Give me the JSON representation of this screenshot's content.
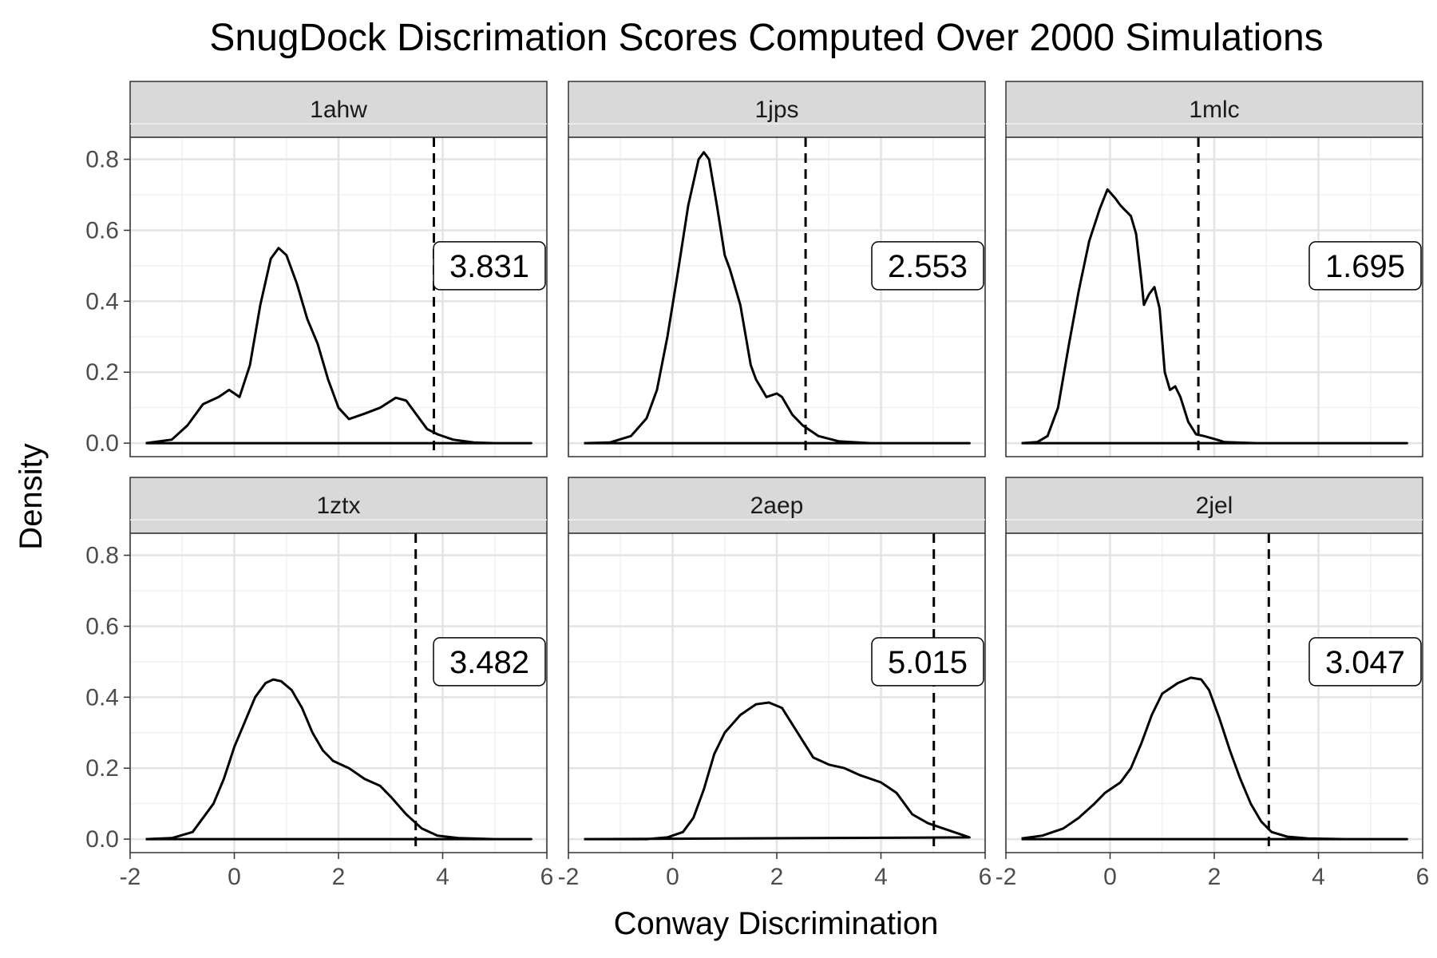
{
  "chart_data": {
    "type": "density-facets",
    "title": "SnugDock Discrimation Scores Computed Over 2000 Simulations",
    "xlabel": "Conway Discrimination",
    "ylabel": "Density",
    "xlim": [
      -2,
      6
    ],
    "ylim": [
      0,
      0.8
    ],
    "x_ticks": [
      "-2",
      "0",
      "2",
      "4",
      "6"
    ],
    "y_ticks": [
      "0.0",
      "0.2",
      "0.4",
      "0.6",
      "0.8"
    ],
    "grid": true,
    "layout": "2 rows x 3 columns",
    "panels": [
      {
        "label": "1ahw",
        "threshold": 3.831,
        "threshold_label": "3.831",
        "curve": [
          [
            -1.7,
            0.0
          ],
          [
            -1.2,
            0.01
          ],
          [
            -0.9,
            0.05
          ],
          [
            -0.6,
            0.11
          ],
          [
            -0.3,
            0.13
          ],
          [
            -0.1,
            0.15
          ],
          [
            0.1,
            0.13
          ],
          [
            0.3,
            0.22
          ],
          [
            0.5,
            0.39
          ],
          [
            0.7,
            0.52
          ],
          [
            0.85,
            0.55
          ],
          [
            1.0,
            0.53
          ],
          [
            1.2,
            0.45
          ],
          [
            1.4,
            0.35
          ],
          [
            1.6,
            0.28
          ],
          [
            1.8,
            0.18
          ],
          [
            2.0,
            0.1
          ],
          [
            2.2,
            0.068
          ],
          [
            2.5,
            0.083
          ],
          [
            2.8,
            0.1
          ],
          [
            3.1,
            0.128
          ],
          [
            3.3,
            0.12
          ],
          [
            3.5,
            0.08
          ],
          [
            3.7,
            0.04
          ],
          [
            3.9,
            0.025
          ],
          [
            4.2,
            0.01
          ],
          [
            4.6,
            0.002
          ],
          [
            5.0,
            0.0
          ],
          [
            5.7,
            0.0
          ]
        ]
      },
      {
        "label": "1jps",
        "threshold": 2.553,
        "threshold_label": "2.553",
        "curve": [
          [
            -1.7,
            0.0
          ],
          [
            -1.2,
            0.002
          ],
          [
            -0.8,
            0.02
          ],
          [
            -0.5,
            0.07
          ],
          [
            -0.3,
            0.15
          ],
          [
            -0.1,
            0.3
          ],
          [
            0.1,
            0.48
          ],
          [
            0.3,
            0.67
          ],
          [
            0.5,
            0.8
          ],
          [
            0.6,
            0.82
          ],
          [
            0.7,
            0.8
          ],
          [
            0.85,
            0.67
          ],
          [
            1.0,
            0.53
          ],
          [
            1.1,
            0.49
          ],
          [
            1.3,
            0.39
          ],
          [
            1.5,
            0.22
          ],
          [
            1.6,
            0.18
          ],
          [
            1.8,
            0.13
          ],
          [
            2.0,
            0.14
          ],
          [
            2.1,
            0.13
          ],
          [
            2.3,
            0.08
          ],
          [
            2.5,
            0.05
          ],
          [
            2.8,
            0.02
          ],
          [
            3.2,
            0.005
          ],
          [
            3.8,
            0.0
          ],
          [
            5.7,
            0.0
          ]
        ]
      },
      {
        "label": "1mlc",
        "threshold": 1.695,
        "threshold_label": "1.695",
        "curve": [
          [
            -1.7,
            0.0
          ],
          [
            -1.4,
            0.003
          ],
          [
            -1.2,
            0.02
          ],
          [
            -1.0,
            0.1
          ],
          [
            -0.8,
            0.27
          ],
          [
            -0.6,
            0.43
          ],
          [
            -0.4,
            0.57
          ],
          [
            -0.2,
            0.66
          ],
          [
            -0.05,
            0.715
          ],
          [
            0.1,
            0.69
          ],
          [
            0.2,
            0.67
          ],
          [
            0.4,
            0.64
          ],
          [
            0.5,
            0.59
          ],
          [
            0.6,
            0.46
          ],
          [
            0.65,
            0.39
          ],
          [
            0.75,
            0.42
          ],
          [
            0.85,
            0.44
          ],
          [
            0.95,
            0.38
          ],
          [
            1.05,
            0.2
          ],
          [
            1.15,
            0.15
          ],
          [
            1.25,
            0.16
          ],
          [
            1.35,
            0.13
          ],
          [
            1.5,
            0.06
          ],
          [
            1.65,
            0.025
          ],
          [
            1.8,
            0.02
          ],
          [
            2.0,
            0.012
          ],
          [
            2.2,
            0.003
          ],
          [
            2.8,
            0.0
          ],
          [
            5.7,
            0.0
          ]
        ]
      },
      {
        "label": "1ztx",
        "threshold": 3.482,
        "threshold_label": "3.482",
        "curve": [
          [
            -1.7,
            0.0
          ],
          [
            -1.2,
            0.003
          ],
          [
            -0.8,
            0.02
          ],
          [
            -0.4,
            0.1
          ],
          [
            -0.2,
            0.17
          ],
          [
            0.0,
            0.26
          ],
          [
            0.2,
            0.33
          ],
          [
            0.4,
            0.4
          ],
          [
            0.6,
            0.44
          ],
          [
            0.75,
            0.45
          ],
          [
            0.9,
            0.445
          ],
          [
            1.1,
            0.42
          ],
          [
            1.3,
            0.37
          ],
          [
            1.5,
            0.3
          ],
          [
            1.7,
            0.25
          ],
          [
            1.9,
            0.22
          ],
          [
            2.2,
            0.2
          ],
          [
            2.5,
            0.17
          ],
          [
            2.8,
            0.15
          ],
          [
            3.0,
            0.12
          ],
          [
            3.3,
            0.07
          ],
          [
            3.6,
            0.03
          ],
          [
            3.9,
            0.01
          ],
          [
            4.3,
            0.003
          ],
          [
            5.0,
            0.0
          ],
          [
            5.7,
            0.0
          ]
        ]
      },
      {
        "label": "2aep",
        "threshold": 5.015,
        "threshold_label": "5.015",
        "curve": [
          [
            -1.7,
            0.0
          ],
          [
            -0.5,
            0.0
          ],
          [
            -0.1,
            0.005
          ],
          [
            0.2,
            0.02
          ],
          [
            0.4,
            0.06
          ],
          [
            0.6,
            0.14
          ],
          [
            0.8,
            0.24
          ],
          [
            1.0,
            0.3
          ],
          [
            1.3,
            0.35
          ],
          [
            1.6,
            0.38
          ],
          [
            1.85,
            0.385
          ],
          [
            2.1,
            0.37
          ],
          [
            2.4,
            0.3
          ],
          [
            2.7,
            0.23
          ],
          [
            3.0,
            0.21
          ],
          [
            3.3,
            0.2
          ],
          [
            3.6,
            0.18
          ],
          [
            4.0,
            0.16
          ],
          [
            4.3,
            0.13
          ],
          [
            4.6,
            0.07
          ],
          [
            4.9,
            0.045
          ],
          [
            5.2,
            0.03
          ],
          [
            5.5,
            0.015
          ],
          [
            5.7,
            0.005
          ]
        ]
      },
      {
        "label": "2jel",
        "threshold": 3.047,
        "threshold_label": "3.047",
        "curve": [
          [
            -1.7,
            0.002
          ],
          [
            -1.3,
            0.01
          ],
          [
            -0.9,
            0.03
          ],
          [
            -0.6,
            0.06
          ],
          [
            -0.3,
            0.1
          ],
          [
            -0.1,
            0.13
          ],
          [
            0.2,
            0.16
          ],
          [
            0.4,
            0.2
          ],
          [
            0.6,
            0.27
          ],
          [
            0.8,
            0.35
          ],
          [
            1.0,
            0.41
          ],
          [
            1.3,
            0.44
          ],
          [
            1.55,
            0.455
          ],
          [
            1.75,
            0.45
          ],
          [
            1.9,
            0.42
          ],
          [
            2.1,
            0.34
          ],
          [
            2.3,
            0.25
          ],
          [
            2.5,
            0.17
          ],
          [
            2.7,
            0.1
          ],
          [
            2.9,
            0.05
          ],
          [
            3.1,
            0.02
          ],
          [
            3.4,
            0.007
          ],
          [
            3.8,
            0.002
          ],
          [
            4.5,
            0.0
          ],
          [
            5.7,
            0.0
          ]
        ]
      }
    ]
  }
}
